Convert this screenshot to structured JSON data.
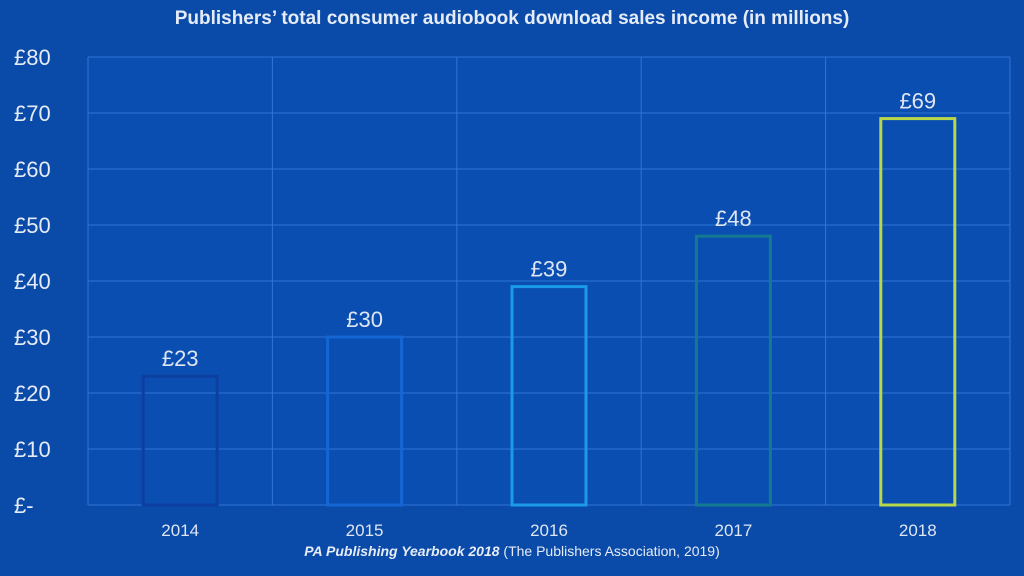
{
  "chart_data": {
    "type": "bar",
    "title": "Publishers’ total consumer audiobook download sales income (in millions)",
    "categories": [
      "2014",
      "2015",
      "2016",
      "2017",
      "2018"
    ],
    "values": [
      23,
      30,
      39,
      48,
      69
    ],
    "value_labels": [
      "£23",
      "£30",
      "£39",
      "£48",
      "£69"
    ],
    "ylim": [
      0,
      80
    ],
    "yticks": [
      0,
      10,
      20,
      30,
      40,
      50,
      60,
      70,
      80
    ],
    "ytick_labels": [
      "£-",
      "£10",
      "£20",
      "£30",
      "£40",
      "£50",
      "£60",
      "£70",
      "£80"
    ],
    "bar_colors": [
      "#0d3fa0",
      "#1466d4",
      "#1a9ae8",
      "#137a90",
      "#b8d84a"
    ],
    "grid": true,
    "xlabel": "",
    "ylabel": ""
  },
  "source": {
    "italic": "PA Publishing Yearbook 2018",
    "rest": " (The Publishers Association, 2019)"
  }
}
